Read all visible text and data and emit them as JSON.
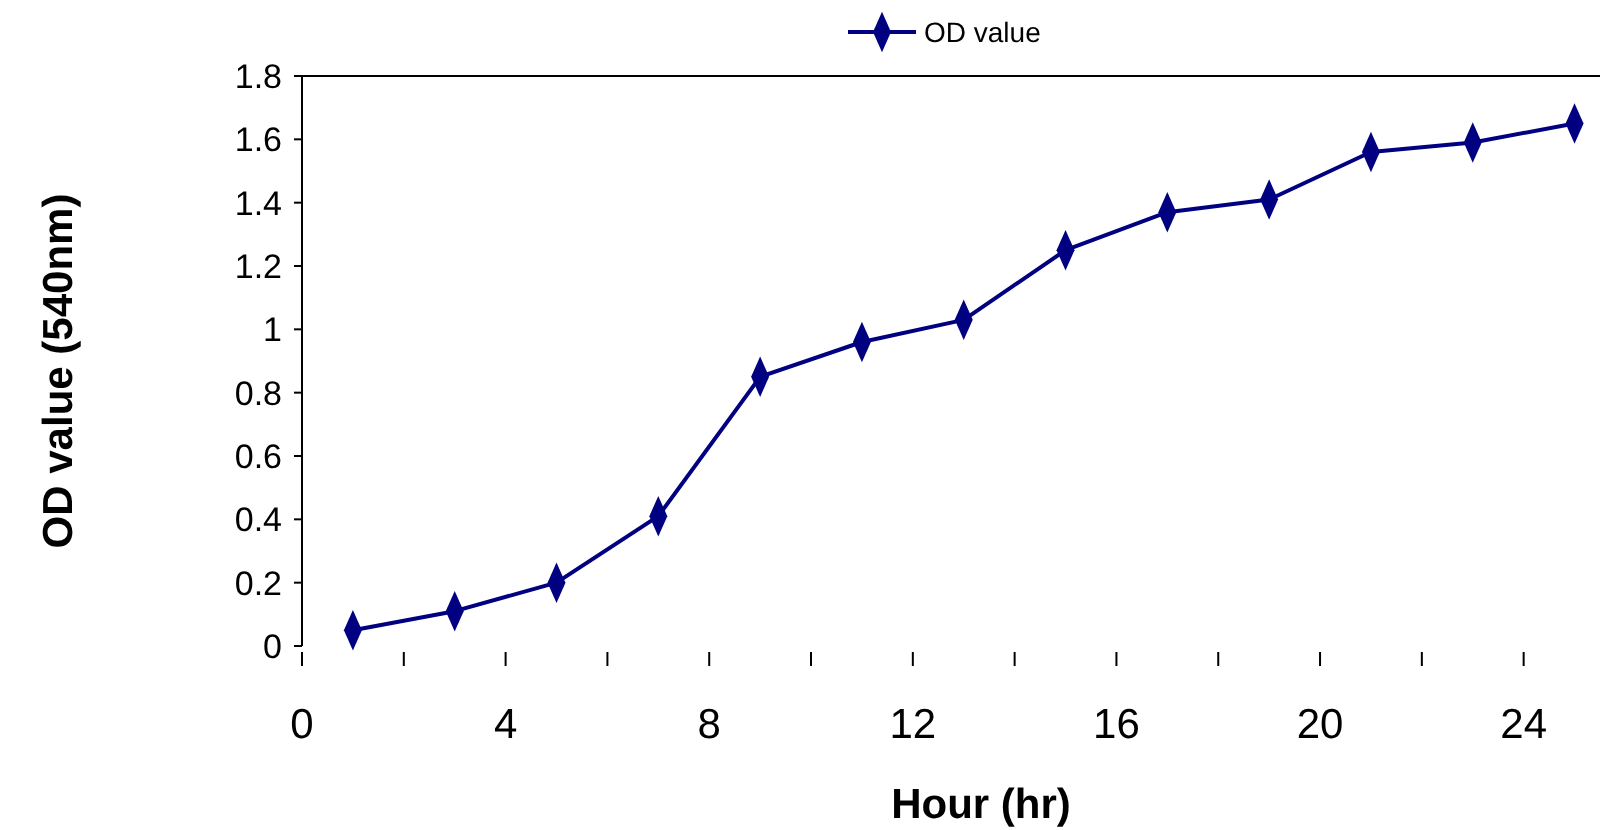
{
  "chart_data": {
    "type": "line",
    "xlabel": "Hour (hr)",
    "ylabel": "OD value (540nm)",
    "x": [
      1,
      3,
      5,
      7,
      9,
      11,
      13,
      15,
      17,
      19,
      21,
      23,
      25
    ],
    "series": [
      {
        "name": "OD value",
        "color": "#000080",
        "values": [
          0.05,
          0.11,
          0.2,
          0.41,
          0.85,
          0.96,
          1.03,
          1.25,
          1.37,
          1.41,
          1.56,
          1.59,
          1.65
        ]
      }
    ],
    "xlim": [
      0,
      25.5
    ],
    "xticks": [
      0,
      {
        "value": 2,
        "label": null
      },
      4,
      {
        "value": 6,
        "label": null
      },
      8,
      {
        "value": 10,
        "label": null
      },
      12,
      {
        "value": 14,
        "label": null
      },
      16,
      {
        "value": 18,
        "label": null
      },
      20,
      {
        "value": 22,
        "label": null
      },
      24
    ],
    "ylim": [
      0,
      1.8
    ],
    "yticks": [
      0,
      0.2,
      0.4,
      0.6,
      0.8,
      1,
      1.2,
      1.4,
      1.6,
      1.8
    ],
    "grid": false,
    "legend": "top",
    "marker": "diamond",
    "line_style": "solid"
  }
}
